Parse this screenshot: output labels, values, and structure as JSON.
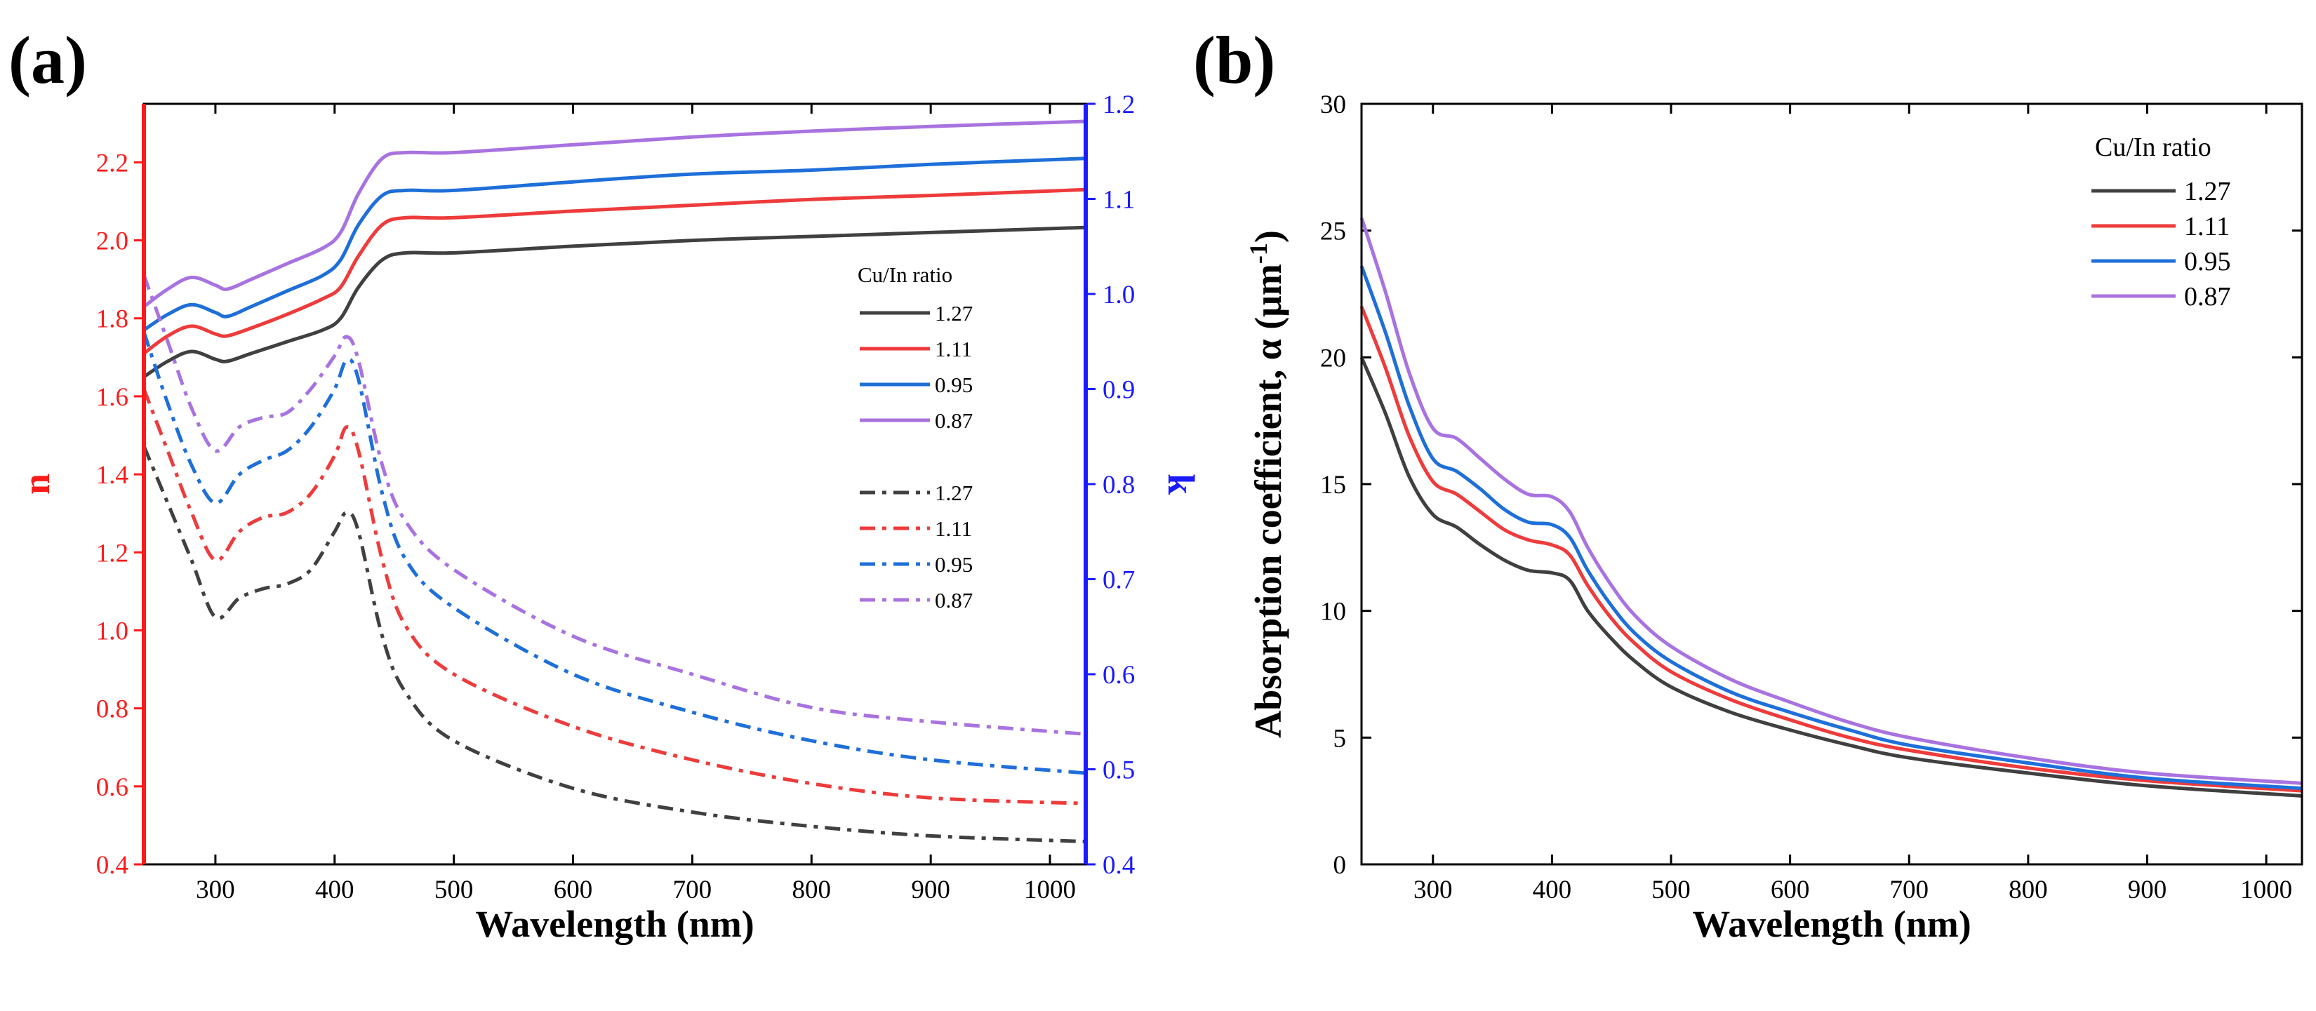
{
  "figure": {
    "panel_a_label": "(a)",
    "panel_b_label": "(b)"
  },
  "colors": {
    "c127": "#404040",
    "c111": "#ee3b3b",
    "c095": "#1e6fd9",
    "c087": "#a873e0",
    "n_axis": "#ff1a1a",
    "k_axis": "#1a1aff"
  },
  "chart_data": [
    {
      "type": "line",
      "panel": "a",
      "title": "",
      "xlabel": "Wavelength (nm)",
      "ylabel": "n",
      "y2label": "k",
      "xlim": [
        240,
        1030
      ],
      "ylim": [
        0.4,
        2.35
      ],
      "y2lim": [
        0.4,
        1.2
      ],
      "xticks": [
        300,
        400,
        500,
        600,
        700,
        800,
        900,
        1000
      ],
      "yticks": [
        0.4,
        0.6,
        0.8,
        1.0,
        1.2,
        1.4,
        1.6,
        1.8,
        2.0,
        2.2
      ],
      "y2ticks": [
        0.4,
        0.5,
        0.6,
        0.7,
        0.8,
        0.9,
        1.0,
        1.1,
        1.2
      ],
      "legend_title": "Cu/In ratio",
      "legend_position": "right-middle",
      "series": [
        {
          "name": "1.27",
          "quantity": "n",
          "style": "solid",
          "color_key": "c127",
          "x": [
            240,
            260,
            280,
            300,
            310,
            330,
            360,
            390,
            405,
            420,
            440,
            460,
            500,
            600,
            700,
            800,
            900,
            1030
          ],
          "y": [
            1.65,
            1.69,
            1.715,
            1.695,
            1.69,
            1.71,
            1.74,
            1.77,
            1.8,
            1.88,
            1.95,
            1.968,
            1.968,
            1.985,
            2.0,
            2.01,
            2.02,
            2.033
          ]
        },
        {
          "name": "1.11",
          "quantity": "n",
          "style": "solid",
          "color_key": "c111",
          "x": [
            240,
            260,
            280,
            300,
            310,
            330,
            360,
            390,
            405,
            420,
            440,
            460,
            500,
            600,
            700,
            800,
            900,
            1030
          ],
          "y": [
            1.71,
            1.755,
            1.78,
            1.76,
            1.755,
            1.775,
            1.81,
            1.85,
            1.88,
            1.96,
            2.04,
            2.058,
            2.058,
            2.075,
            2.09,
            2.105,
            2.115,
            2.13
          ]
        },
        {
          "name": "0.95",
          "quantity": "n",
          "style": "solid",
          "color_key": "c095",
          "x": [
            240,
            260,
            280,
            300,
            310,
            330,
            360,
            390,
            405,
            420,
            440,
            460,
            500,
            600,
            700,
            800,
            900,
            1030
          ],
          "y": [
            1.77,
            1.81,
            1.835,
            1.815,
            1.805,
            1.83,
            1.87,
            1.91,
            1.95,
            2.04,
            2.115,
            2.128,
            2.128,
            2.15,
            2.17,
            2.18,
            2.195,
            2.21
          ]
        },
        {
          "name": "0.87",
          "quantity": "n",
          "style": "solid",
          "color_key": "c087",
          "x": [
            240,
            260,
            280,
            300,
            310,
            330,
            360,
            390,
            405,
            420,
            440,
            460,
            500,
            600,
            700,
            800,
            900,
            1030
          ],
          "y": [
            1.83,
            1.875,
            1.905,
            1.885,
            1.875,
            1.9,
            1.94,
            1.98,
            2.02,
            2.12,
            2.21,
            2.225,
            2.225,
            2.245,
            2.265,
            2.28,
            2.292,
            2.305
          ]
        },
        {
          "name": "1.27",
          "quantity": "k",
          "style": "dash-dot",
          "color_key": "c127",
          "x": [
            240,
            260,
            280,
            300,
            320,
            340,
            360,
            380,
            400,
            410,
            420,
            440,
            460,
            500,
            600,
            700,
            800,
            900,
            1030
          ],
          "y": [
            0.84,
            0.78,
            0.72,
            0.66,
            0.68,
            0.69,
            0.695,
            0.71,
            0.75,
            0.77,
            0.75,
            0.64,
            0.58,
            0.53,
            0.48,
            0.455,
            0.44,
            0.43,
            0.424
          ]
        },
        {
          "name": "1.11",
          "quantity": "k",
          "style": "dash-dot",
          "color_key": "c111",
          "x": [
            240,
            260,
            280,
            300,
            320,
            340,
            360,
            380,
            400,
            410,
            420,
            440,
            460,
            500,
            600,
            700,
            800,
            900,
            1030
          ],
          "y": [
            0.9,
            0.835,
            0.77,
            0.72,
            0.75,
            0.765,
            0.77,
            0.79,
            0.83,
            0.86,
            0.835,
            0.72,
            0.65,
            0.6,
            0.545,
            0.51,
            0.485,
            0.47,
            0.464
          ]
        },
        {
          "name": "0.95",
          "quantity": "k",
          "style": "dash-dot",
          "color_key": "c095",
          "x": [
            240,
            260,
            280,
            300,
            320,
            340,
            360,
            380,
            400,
            410,
            420,
            440,
            460,
            500,
            600,
            700,
            800,
            900,
            1030
          ],
          "y": [
            0.96,
            0.885,
            0.82,
            0.78,
            0.81,
            0.825,
            0.835,
            0.86,
            0.9,
            0.93,
            0.91,
            0.79,
            0.72,
            0.67,
            0.6,
            0.56,
            0.53,
            0.51,
            0.496
          ]
        },
        {
          "name": "0.87",
          "quantity": "k",
          "style": "dash-dot",
          "color_key": "c087",
          "x": [
            240,
            260,
            280,
            300,
            320,
            340,
            360,
            380,
            400,
            410,
            420,
            440,
            460,
            500,
            600,
            700,
            800,
            900,
            1030
          ],
          "y": [
            1.02,
            0.95,
            0.88,
            0.835,
            0.86,
            0.87,
            0.875,
            0.9,
            0.935,
            0.955,
            0.93,
            0.82,
            0.76,
            0.71,
            0.64,
            0.6,
            0.565,
            0.55,
            0.537
          ]
        }
      ]
    },
    {
      "type": "line",
      "panel": "b",
      "title": "",
      "xlabel": "Wavelength (nm)",
      "ylabel": "Absorption coefficient, α (μm⁻¹)",
      "ylabel_parts": {
        "main": "Absorption coefficient, α (μm",
        "sup": "-1",
        "close": ")"
      },
      "xlim": [
        240,
        1030
      ],
      "ylim": [
        0,
        30
      ],
      "xticks": [
        300,
        400,
        500,
        600,
        700,
        800,
        900,
        1000
      ],
      "yticks": [
        0,
        5,
        10,
        15,
        20,
        25,
        30
      ],
      "legend_title": "Cu/In ratio",
      "legend_position": "top-right",
      "series": [
        {
          "name": "1.27",
          "style": "solid",
          "color_key": "c127",
          "x": [
            240,
            260,
            280,
            300,
            320,
            340,
            360,
            380,
            400,
            415,
            430,
            450,
            470,
            500,
            550,
            600,
            650,
            700,
            800,
            900,
            1030
          ],
          "y": [
            20.0,
            17.8,
            15.3,
            13.8,
            13.3,
            12.6,
            12.0,
            11.6,
            11.5,
            11.2,
            10.0,
            8.9,
            8.0,
            7.0,
            6.0,
            5.3,
            4.7,
            4.2,
            3.6,
            3.1,
            2.7
          ]
        },
        {
          "name": "1.11",
          "style": "solid",
          "color_key": "c111",
          "x": [
            240,
            260,
            280,
            300,
            320,
            340,
            360,
            380,
            400,
            415,
            430,
            450,
            470,
            500,
            550,
            600,
            650,
            700,
            800,
            900,
            1030
          ],
          "y": [
            22.0,
            19.6,
            16.9,
            15.1,
            14.6,
            13.9,
            13.2,
            12.8,
            12.6,
            12.2,
            11.0,
            9.7,
            8.7,
            7.6,
            6.5,
            5.7,
            5.0,
            4.5,
            3.8,
            3.3,
            2.9
          ]
        },
        {
          "name": "0.95",
          "style": "solid",
          "color_key": "c095",
          "x": [
            240,
            260,
            280,
            300,
            320,
            340,
            360,
            380,
            400,
            415,
            430,
            450,
            470,
            500,
            550,
            600,
            650,
            700,
            800,
            900,
            1030
          ],
          "y": [
            23.6,
            21.0,
            18.1,
            16.0,
            15.5,
            14.8,
            14.0,
            13.5,
            13.4,
            12.9,
            11.6,
            10.2,
            9.1,
            8.0,
            6.8,
            6.0,
            5.3,
            4.7,
            4.0,
            3.4,
            3.0
          ]
        },
        {
          "name": "0.87",
          "style": "solid",
          "color_key": "c087",
          "x": [
            240,
            260,
            280,
            300,
            320,
            340,
            360,
            380,
            400,
            415,
            430,
            450,
            470,
            500,
            550,
            600,
            650,
            700,
            800,
            900,
            1030
          ],
          "y": [
            25.5,
            22.6,
            19.4,
            17.2,
            16.8,
            16.0,
            15.2,
            14.6,
            14.5,
            13.9,
            12.5,
            11.0,
            9.8,
            8.6,
            7.3,
            6.4,
            5.6,
            5.0,
            4.2,
            3.6,
            3.2
          ]
        }
      ]
    }
  ]
}
